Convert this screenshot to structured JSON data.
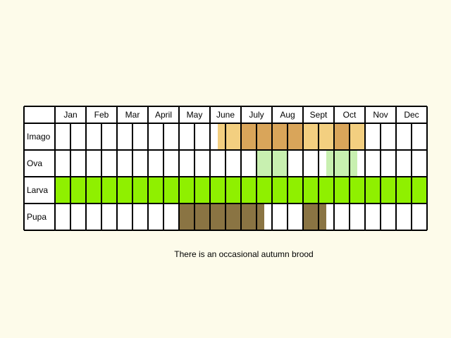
{
  "colors": {
    "background": "#fdfbea",
    "cell": "#ffffff",
    "grid": "#000000",
    "imago": "#f3cf80",
    "imago_peak": "#d9a55a",
    "ova": "#c8f0b0",
    "larva": "#8ff000",
    "pupa": "#8a7443"
  },
  "chart_data": {
    "type": "table",
    "title": "",
    "months": [
      "Jan",
      "Feb",
      "Mar",
      "April",
      "May",
      "June",
      "July",
      "Aug",
      "Sept",
      "Oct",
      "Nov",
      "Dec"
    ],
    "rows": [
      {
        "label": "Imago",
        "key": "imago",
        "periods": [
          {
            "start": 5.25,
            "end": 10.0,
            "level": "imago"
          },
          {
            "start": 6.0,
            "end": 8.0,
            "level": "imago_peak"
          },
          {
            "start": 9.0,
            "end": 9.5,
            "level": "imago_peak"
          }
        ]
      },
      {
        "label": "Ova",
        "key": "ova",
        "periods": [
          {
            "start": 6.5,
            "end": 7.5,
            "level": "ova"
          },
          {
            "start": 8.75,
            "end": 9.75,
            "level": "ova"
          }
        ]
      },
      {
        "label": "Larva",
        "key": "larva",
        "periods": [
          {
            "start": 0,
            "end": 12,
            "level": "larva"
          }
        ]
      },
      {
        "label": "Pupa",
        "key": "pupa",
        "periods": [
          {
            "start": 4.0,
            "end": 6.75,
            "level": "pupa"
          },
          {
            "start": 8.0,
            "end": 8.75,
            "level": "pupa"
          }
        ]
      }
    ],
    "note": "There is an occasional autumn brood"
  }
}
